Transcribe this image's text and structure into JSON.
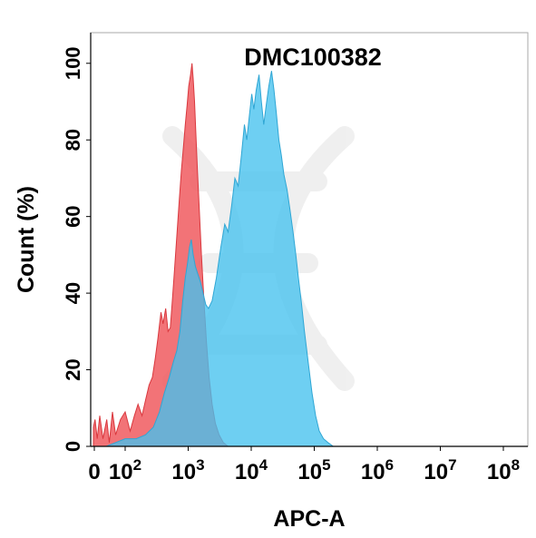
{
  "chart_data": {
    "type": "area",
    "title": "DMC100382",
    "xlabel": "APC-A",
    "ylabel": "Count  (%)",
    "x_scale": "log",
    "xlim": [
      0,
      100000000
    ],
    "ylim": [
      0,
      108
    ],
    "grid": false,
    "legend": "none",
    "x_ticks": [
      {
        "value": 0,
        "base": "0",
        "exp": ""
      },
      {
        "value": 100,
        "base": "10",
        "exp": "2"
      },
      {
        "value": 1000,
        "base": "10",
        "exp": "3"
      },
      {
        "value": 10000,
        "base": "10",
        "exp": "4"
      },
      {
        "value": 100000,
        "base": "10",
        "exp": "5"
      },
      {
        "value": 1000000,
        "base": "10",
        "exp": "6"
      },
      {
        "value": 10000000,
        "base": "10",
        "exp": "7"
      },
      {
        "value": 100000000,
        "base": "10",
        "exp": "8"
      }
    ],
    "y_ticks": [
      "0",
      "20",
      "40",
      "60",
      "80",
      "100"
    ],
    "series": [
      {
        "color": "#f05a5f",
        "stroke": "#d9383e",
        "opacity": 0.85,
        "points": [
          [
            0,
            5
          ],
          [
            5,
            7
          ],
          [
            12,
            2
          ],
          [
            20,
            8
          ],
          [
            30,
            2
          ],
          [
            42,
            7
          ],
          [
            50,
            1
          ],
          [
            60,
            9
          ],
          [
            70,
            3
          ],
          [
            85,
            7
          ],
          [
            100,
            9
          ],
          [
            120,
            4
          ],
          [
            140,
            8
          ],
          [
            160,
            11
          ],
          [
            185,
            8
          ],
          [
            210,
            12
          ],
          [
            240,
            16
          ],
          [
            270,
            18
          ],
          [
            300,
            23
          ],
          [
            330,
            28
          ],
          [
            370,
            35
          ],
          [
            400,
            32
          ],
          [
            440,
            36
          ],
          [
            480,
            30
          ],
          [
            520,
            31
          ],
          [
            560,
            38
          ],
          [
            600,
            45
          ],
          [
            660,
            55
          ],
          [
            720,
            64
          ],
          [
            780,
            72
          ],
          [
            840,
            78
          ],
          [
            900,
            84
          ],
          [
            960,
            89
          ],
          [
            1020,
            94
          ],
          [
            1090,
            97
          ],
          [
            1150,
            100
          ],
          [
            1200,
            96
          ],
          [
            1260,
            90
          ],
          [
            1320,
            82
          ],
          [
            1400,
            72
          ],
          [
            1500,
            62
          ],
          [
            1620,
            50
          ],
          [
            1780,
            38
          ],
          [
            1950,
            27
          ],
          [
            2150,
            18
          ],
          [
            2400,
            11
          ],
          [
            2700,
            6
          ],
          [
            3100,
            3
          ],
          [
            3600,
            1
          ],
          [
            4300,
            0
          ]
        ]
      },
      {
        "color": "#45c2ee",
        "stroke": "#2fa6d4",
        "opacity": 0.78,
        "points": [
          [
            0,
            0
          ],
          [
            40,
            0
          ],
          [
            70,
            1
          ],
          [
            100,
            2
          ],
          [
            150,
            2
          ],
          [
            210,
            3
          ],
          [
            280,
            5
          ],
          [
            350,
            9
          ],
          [
            420,
            14
          ],
          [
            500,
            18
          ],
          [
            580,
            22
          ],
          [
            660,
            25
          ],
          [
            740,
            30
          ],
          [
            820,
            38
          ],
          [
            900,
            44
          ],
          [
            980,
            48
          ],
          [
            1050,
            52
          ],
          [
            1120,
            54
          ],
          [
            1200,
            50
          ],
          [
            1300,
            47
          ],
          [
            1420,
            45
          ],
          [
            1560,
            43
          ],
          [
            1720,
            40
          ],
          [
            1900,
            37
          ],
          [
            2100,
            36
          ],
          [
            2400,
            38
          ],
          [
            2800,
            44
          ],
          [
            3300,
            52
          ],
          [
            3800,
            58
          ],
          [
            4300,
            56
          ],
          [
            4900,
            63
          ],
          [
            5500,
            70
          ],
          [
            6200,
            68
          ],
          [
            7000,
            76
          ],
          [
            7800,
            84
          ],
          [
            8500,
            80
          ],
          [
            9300,
            86
          ],
          [
            10200,
            92
          ],
          [
            11000,
            88
          ],
          [
            12000,
            93
          ],
          [
            13300,
            97
          ],
          [
            14500,
            90
          ],
          [
            15800,
            84
          ],
          [
            17300,
            89
          ],
          [
            19000,
            94
          ],
          [
            21000,
            98
          ],
          [
            23000,
            93
          ],
          [
            25000,
            87
          ],
          [
            27500,
            80
          ],
          [
            30000,
            76
          ],
          [
            33000,
            71
          ],
          [
            37000,
            67
          ],
          [
            41000,
            62
          ],
          [
            46000,
            56
          ],
          [
            51000,
            50
          ],
          [
            56000,
            44
          ],
          [
            62000,
            38
          ],
          [
            70000,
            30
          ],
          [
            80000,
            22
          ],
          [
            92000,
            14
          ],
          [
            105000,
            8
          ],
          [
            120000,
            4
          ],
          [
            140000,
            2
          ],
          [
            165000,
            1
          ],
          [
            200000,
            0
          ]
        ]
      }
    ]
  }
}
